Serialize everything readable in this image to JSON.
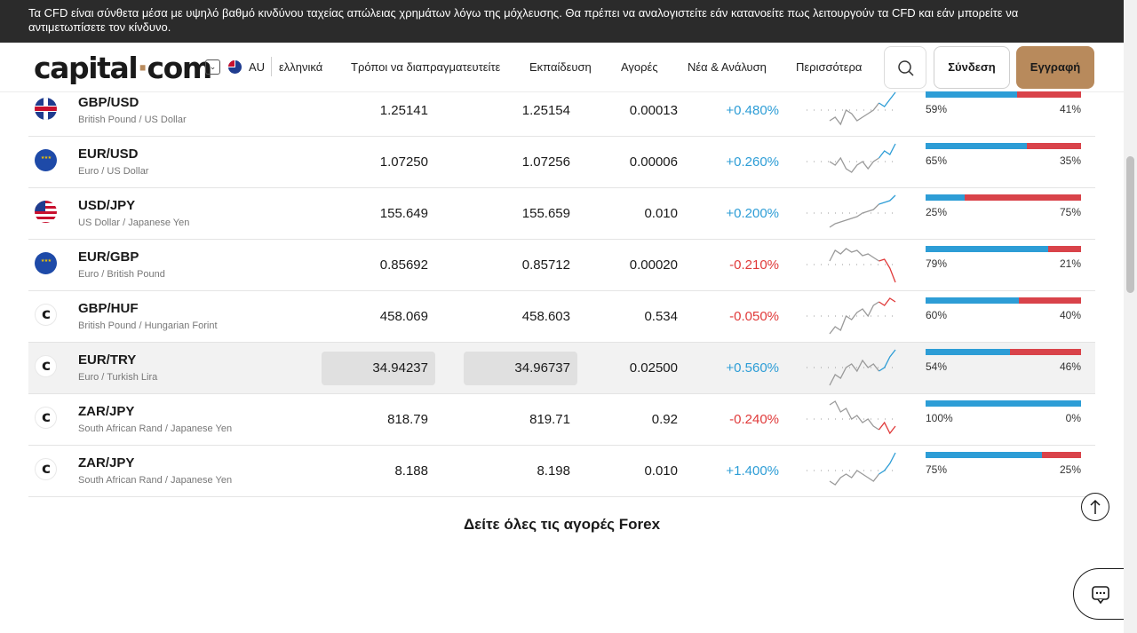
{
  "risk_banner": "Τα CFD είναι σύνθετα μέσα με υψηλό βαθμό κινδύνου ταχείας απώλειας χρημάτων λόγω της μόχλευσης. Θα πρέπει να αναλογιστείτε εάν κατανοείτε πως λειτουργούν τα CFD και εάν μπορείτε να αντιμετωπίσετε τον κίνδυνο.",
  "header": {
    "logo_main": "capital",
    "logo_dot": "·",
    "logo_tail": "com",
    "country": "AU",
    "language": "ελληνικά",
    "nav": [
      "Τρόποι να διαπραγματευτείτε",
      "Εκπαίδευση",
      "Αγορές",
      "Νέα & Ανάλυση",
      "Περισσότερα"
    ],
    "login": "Σύνδεση",
    "signup": "Εγγραφή"
  },
  "colors": {
    "accent": "#b88a5c",
    "positive": "#2d9dd6",
    "negative": "#e03a3a",
    "buyers": "#2d9dd6",
    "sellers": "#d9434a"
  },
  "rows": [
    {
      "symbol": "GBP/USD",
      "description": "British Pound / US Dollar",
      "flag": "uk",
      "sell": "1.25141",
      "buy": "1.25154",
      "spread": "0.00013",
      "change": "+0.480%",
      "direction": "up",
      "buy_pct": "59%",
      "sell_pct": "41%",
      "buy_frac": 0.59,
      "trend": [
        0.2,
        0.3,
        0.1,
        0.5,
        0.4,
        0.2,
        0.3,
        0.4,
        0.5,
        0.7,
        0.6,
        0.8,
        1.0
      ]
    },
    {
      "symbol": "EUR/USD",
      "description": "Euro / US Dollar",
      "flag": "eu",
      "sell": "1.07250",
      "buy": "1.07256",
      "spread": "0.00006",
      "change": "+0.260%",
      "direction": "up",
      "buy_pct": "65%",
      "sell_pct": "35%",
      "buy_frac": 0.65,
      "trend": [
        0.5,
        0.4,
        0.6,
        0.3,
        0.2,
        0.4,
        0.5,
        0.3,
        0.5,
        0.6,
        0.8,
        0.7,
        1.0
      ]
    },
    {
      "symbol": "USD/JPY",
      "description": "US Dollar / Japanese Yen",
      "flag": "us",
      "sell": "155.649",
      "buy": "155.659",
      "spread": "0.010",
      "change": "+0.200%",
      "direction": "up",
      "buy_pct": "25%",
      "sell_pct": "75%",
      "buy_frac": 0.25,
      "trend": [
        0.1,
        0.2,
        0.25,
        0.3,
        0.35,
        0.4,
        0.5,
        0.55,
        0.6,
        0.75,
        0.8,
        0.85,
        1.0
      ]
    },
    {
      "symbol": "EUR/GBP",
      "description": "Euro / British Pound",
      "flag": "eu",
      "sell": "0.85692",
      "buy": "0.85712",
      "spread": "0.00020",
      "change": "-0.210%",
      "direction": "down",
      "buy_pct": "79%",
      "sell_pct": "21%",
      "buy_frac": 0.79,
      "trend": [
        0.6,
        0.9,
        0.8,
        0.95,
        0.85,
        0.9,
        0.75,
        0.8,
        0.7,
        0.6,
        0.65,
        0.4,
        0.0
      ]
    },
    {
      "symbol": "GBP/HUF",
      "description": "British Pound / Hungarian Forint",
      "flag": "cc",
      "sell": "458.069",
      "buy": "458.603",
      "spread": "0.534",
      "change": "-0.050%",
      "direction": "down",
      "buy_pct": "60%",
      "sell_pct": "40%",
      "buy_frac": 0.6,
      "trend": [
        0.0,
        0.2,
        0.1,
        0.5,
        0.4,
        0.6,
        0.7,
        0.5,
        0.8,
        0.9,
        0.8,
        1.0,
        0.9
      ]
    },
    {
      "symbol": "EUR/TRY",
      "description": "Euro / Turkish Lira",
      "flag": "cc",
      "sell": "34.94237",
      "buy": "34.96737",
      "spread": "0.02500",
      "change": "+0.560%",
      "direction": "up",
      "buy_pct": "54%",
      "sell_pct": "46%",
      "buy_frac": 0.54,
      "trend": [
        0.0,
        0.3,
        0.2,
        0.5,
        0.6,
        0.4,
        0.7,
        0.5,
        0.6,
        0.4,
        0.5,
        0.8,
        1.0
      ]
    },
    {
      "symbol": "ZAR/JPY",
      "description": "South African Rand / Japanese Yen",
      "flag": "cc",
      "sell": "818.79",
      "buy": "819.71",
      "spread": "0.92",
      "change": "-0.240%",
      "direction": "down",
      "buy_pct": "100%",
      "sell_pct": "0%",
      "buy_frac": 1.0,
      "trend": [
        0.9,
        1.0,
        0.7,
        0.8,
        0.5,
        0.6,
        0.4,
        0.5,
        0.3,
        0.2,
        0.4,
        0.1,
        0.3
      ]
    },
    {
      "symbol": "ZAR/JPY",
      "description": "South African Rand / Japanese Yen",
      "flag": "cc",
      "sell": "8.188",
      "buy": "8.198",
      "spread": "0.010",
      "change": "+1.400%",
      "direction": "up",
      "buy_pct": "75%",
      "sell_pct": "25%",
      "buy_frac": 0.75,
      "trend": [
        0.2,
        0.1,
        0.3,
        0.4,
        0.3,
        0.5,
        0.4,
        0.3,
        0.2,
        0.4,
        0.5,
        0.7,
        1.0
      ]
    }
  ],
  "see_all": "Δείτε όλες τις αγορές Forex",
  "icons": {
    "search": "search-icon",
    "scroll_top": "arrow-up-icon",
    "chat": "chat-icon",
    "dropdown": "chevron-down-icon"
  }
}
